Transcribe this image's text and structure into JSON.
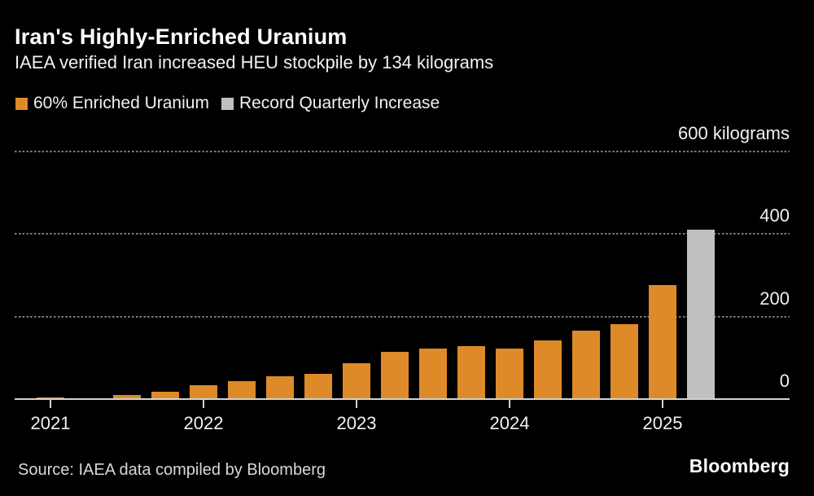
{
  "header": {
    "title": "Iran's Highly-Enriched Uranium",
    "subtitle": "IAEA verified Iran increased HEU stockpile by 134 kilograms"
  },
  "legend": {
    "items": [
      {
        "label": "60% Enriched Uranium",
        "color": "#DE8A29"
      },
      {
        "label": "Record Quarterly Increase",
        "color": "#C0C0C0"
      }
    ]
  },
  "chart_data": {
    "type": "bar",
    "title": "Iran's Highly-Enriched Uranium",
    "subtitle": "IAEA verified Iran increased HEU stockpile by 134 kilograms",
    "unit": "kilograms",
    "ylim": [
      0,
      600
    ],
    "grid": "dotted-horizontal",
    "legend_position": "top-left",
    "y_ticks": [
      {
        "value": 0,
        "label": "0"
      },
      {
        "value": 200,
        "label": "200"
      },
      {
        "value": 400,
        "label": "400"
      },
      {
        "value": 600,
        "label": "600 kilograms"
      }
    ],
    "x_ticks": [
      {
        "label": "2021",
        "slot": 0
      },
      {
        "label": "2022",
        "slot": 4
      },
      {
        "label": "2023",
        "slot": 8
      },
      {
        "label": "2024",
        "slot": 12
      },
      {
        "label": "2025",
        "slot": 16
      }
    ],
    "points": [
      {
        "period": "2021 Q1",
        "value": 2,
        "series": "60% Enriched Uranium"
      },
      {
        "period": "2021 Q2",
        "value": 0,
        "series": "60% Enriched Uranium"
      },
      {
        "period": "2021 Q3",
        "value": 10,
        "series": "60% Enriched Uranium"
      },
      {
        "period": "2021 Q4",
        "value": 18,
        "series": "60% Enriched Uranium"
      },
      {
        "period": "2022 Q1",
        "value": 33,
        "series": "60% Enriched Uranium"
      },
      {
        "period": "2022 Q2",
        "value": 43,
        "series": "60% Enriched Uranium"
      },
      {
        "period": "2022 Q3",
        "value": 56,
        "series": "60% Enriched Uranium"
      },
      {
        "period": "2022 Q4",
        "value": 62,
        "series": "60% Enriched Uranium"
      },
      {
        "period": "2023 Q1",
        "value": 87,
        "series": "60% Enriched Uranium"
      },
      {
        "period": "2023 Q2",
        "value": 114,
        "series": "60% Enriched Uranium"
      },
      {
        "period": "2023 Q3",
        "value": 122,
        "series": "60% Enriched Uranium"
      },
      {
        "period": "2023 Q4",
        "value": 128,
        "series": "60% Enriched Uranium"
      },
      {
        "period": "2024 Q1",
        "value": 122,
        "series": "60% Enriched Uranium"
      },
      {
        "period": "2024 Q2",
        "value": 142,
        "series": "60% Enriched Uranium"
      },
      {
        "period": "2024 Q3",
        "value": 165,
        "series": "60% Enriched Uranium"
      },
      {
        "period": "2024 Q4",
        "value": 182,
        "series": "60% Enriched Uranium"
      },
      {
        "period": "2025 Q1",
        "value": 275,
        "series": "60% Enriched Uranium"
      },
      {
        "period": "2025 Q2",
        "value": 409,
        "series": "Record Quarterly Increase"
      }
    ]
  },
  "footer": {
    "source": "Source: IAEA data compiled by Bloomberg",
    "logo": "Bloomberg"
  }
}
